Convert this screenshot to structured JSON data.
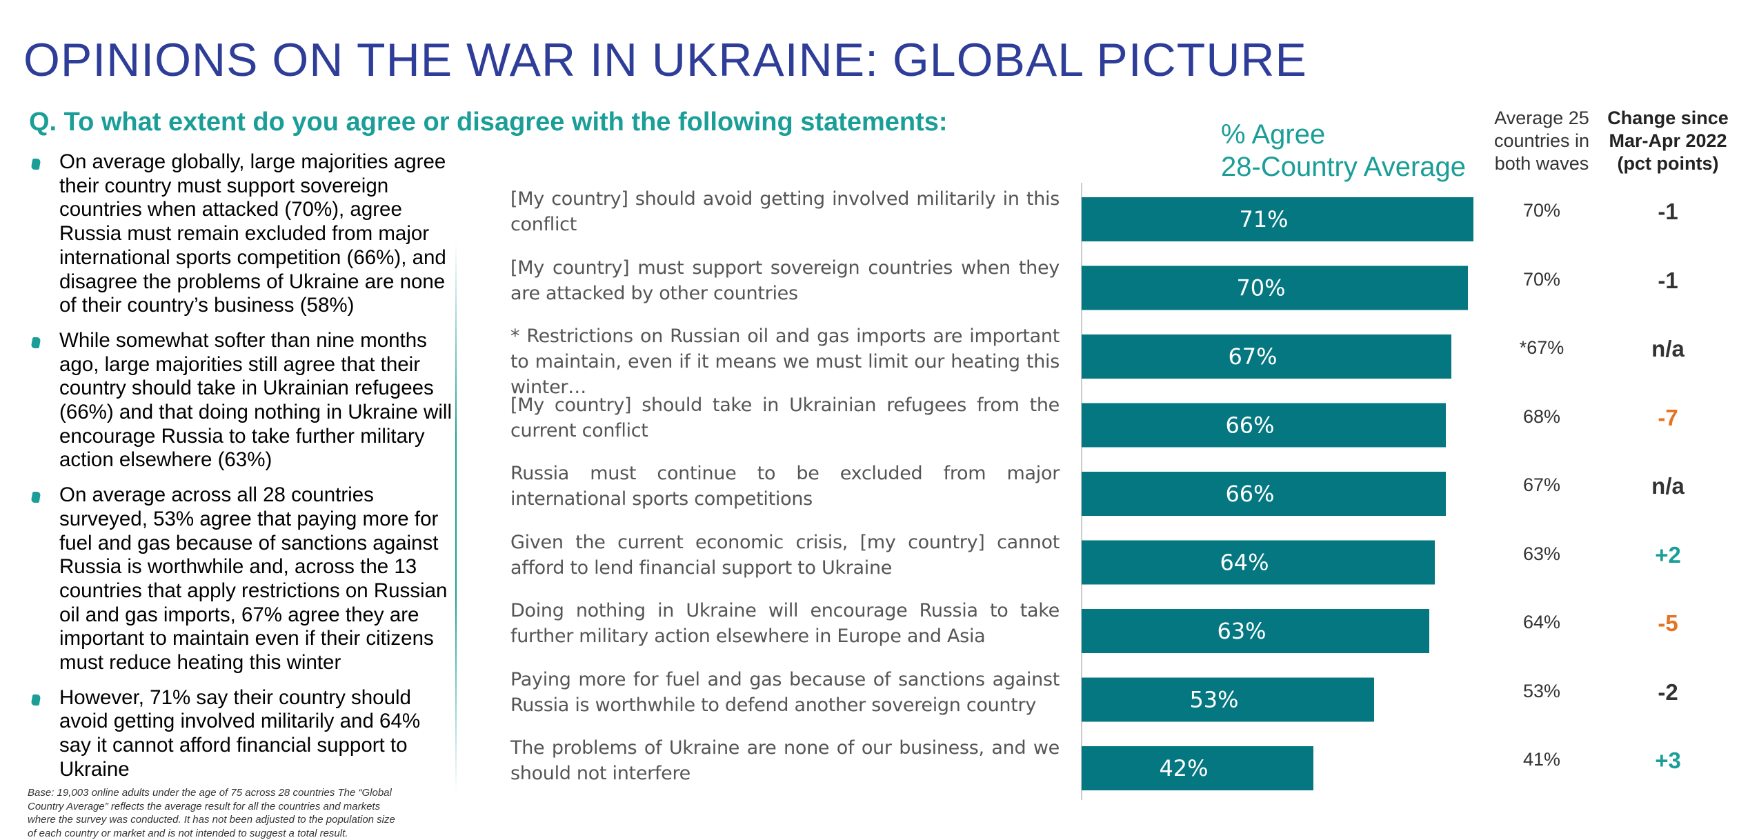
{
  "title": "OPINIONS ON THE WAR IN UKRAINE: GLOBAL PICTURE",
  "question": "Q. To what extent do you agree or disagree with the following statements:",
  "bullets": [
    "On average globally, large majorities agree their country must support sovereign countries when attacked (70%), agree Russia must remain excluded from major international sports competition (66%), and disagree the problems of Ukraine are none of their country’s business (58%)",
    "While somewhat softer than nine months ago, large majorities still agree that their country should take in Ukrainian refugees (66%) and that doing nothing in Ukraine will encourage Russia to take further military action elsewhere (63%)",
    "On average across all 28 countries surveyed, 53% agree that paying more for fuel and gas because of sanctions against Russia is worthwhile and, across the 13 countries that apply restrictions on Russian oil and gas imports, 67% agree they are important to maintain even if their citizens must reduce heating this winter",
    "However, 71% say their country should avoid getting involved militarily and 64% say it cannot afford financial support to Ukraine"
  ],
  "footnote": "Base: 19,003 online adults under the age of 75 across 28 countries The “Global Country Average” reflects the average result for all the countries and markets where the survey was conducted. It has not been adjusted to the population size of each country or market and is not intended to suggest a total result.",
  "headers": {
    "agree_line1": "% Agree",
    "agree_line2": "28-Country Average",
    "avg_line1": "Average 25",
    "avg_line2": "countries in",
    "avg_line3": "both waves",
    "chg_line1": "Change since",
    "chg_line2": "Mar-Apr 2022",
    "chg_line3": "(pct points)"
  },
  "colors": {
    "bar": "#047780",
    "title": "#2e3d98",
    "accent": "#1a9e97",
    "negative": "#e67322",
    "positive": "#1a9e97",
    "neutral": "#333333"
  },
  "chart_data": {
    "type": "bar",
    "orientation": "horizontal",
    "categories": [
      "[My country] should avoid getting involved militarily in this conflict",
      "[My country] must support sovereign countries when they are attacked by other countries",
      "* Restrictions on Russian oil and gas imports are important to maintain, even if it means we must limit our heating this winter…",
      "[My country] should take in Ukrainian refugees from the current conflict",
      "Russia must continue to be excluded from major international sports competitions",
      "Given the current economic crisis, [my  country] cannot afford to lend financial support to Ukraine",
      "Doing nothing in Ukraine will encourage Russia to take further military action elsewhere in Europe and Asia",
      "Paying more for fuel and gas because of sanctions against Russia is worthwhile to defend another sovereign country",
      "The problems of Ukraine are none of our business, and we should not interfere"
    ],
    "values": [
      71,
      70,
      67,
      66,
      66,
      64,
      63,
      53,
      42
    ],
    "labels": [
      "71%",
      "70%",
      "67%",
      "66%",
      "66%",
      "64%",
      "63%",
      "53%",
      "42%"
    ],
    "avg25": [
      "70%",
      "70%",
      "*67%",
      "68%",
      "67%",
      "63%",
      "64%",
      "53%",
      "41%"
    ],
    "change": [
      "-1",
      "-1",
      "n/a",
      "-7",
      "n/a",
      "+2",
      "-5",
      "-2",
      "+3"
    ],
    "change_tone": [
      "neutral",
      "neutral",
      "neutral",
      "negative",
      "neutral",
      "positive",
      "negative",
      "neutral",
      "positive"
    ],
    "xlim": [
      0,
      100
    ],
    "title": "% Agree 28-Country Average"
  }
}
